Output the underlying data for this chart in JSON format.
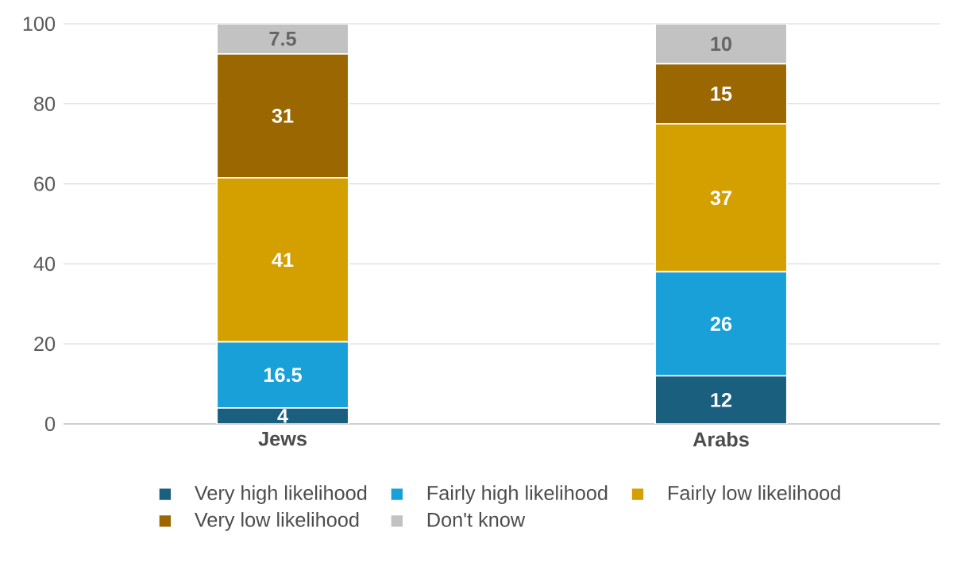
{
  "chart_data": {
    "type": "bar",
    "stacked": true,
    "categories": [
      "Jews",
      "Arabs"
    ],
    "series": [
      {
        "name": "Very high likelihood",
        "color": "#1b5f7e",
        "values": [
          4,
          12
        ]
      },
      {
        "name": "Fairly high likelihood",
        "color": "#19a0d8",
        "values": [
          16.5,
          26
        ]
      },
      {
        "name": "Fairly low likelihood",
        "color": "#d3a000",
        "values": [
          41,
          37
        ]
      },
      {
        "name": "Very low likelihood",
        "color": "#9a6700",
        "values": [
          31,
          15
        ]
      },
      {
        "name": "Don't know",
        "color": "#c2c2c2",
        "values": [
          7.5,
          10
        ]
      }
    ],
    "ylim": [
      0,
      100
    ],
    "yticks": [
      0,
      20,
      40,
      60,
      80,
      100
    ],
    "grid": "y",
    "legend": "bottom",
    "data_labels": true
  }
}
